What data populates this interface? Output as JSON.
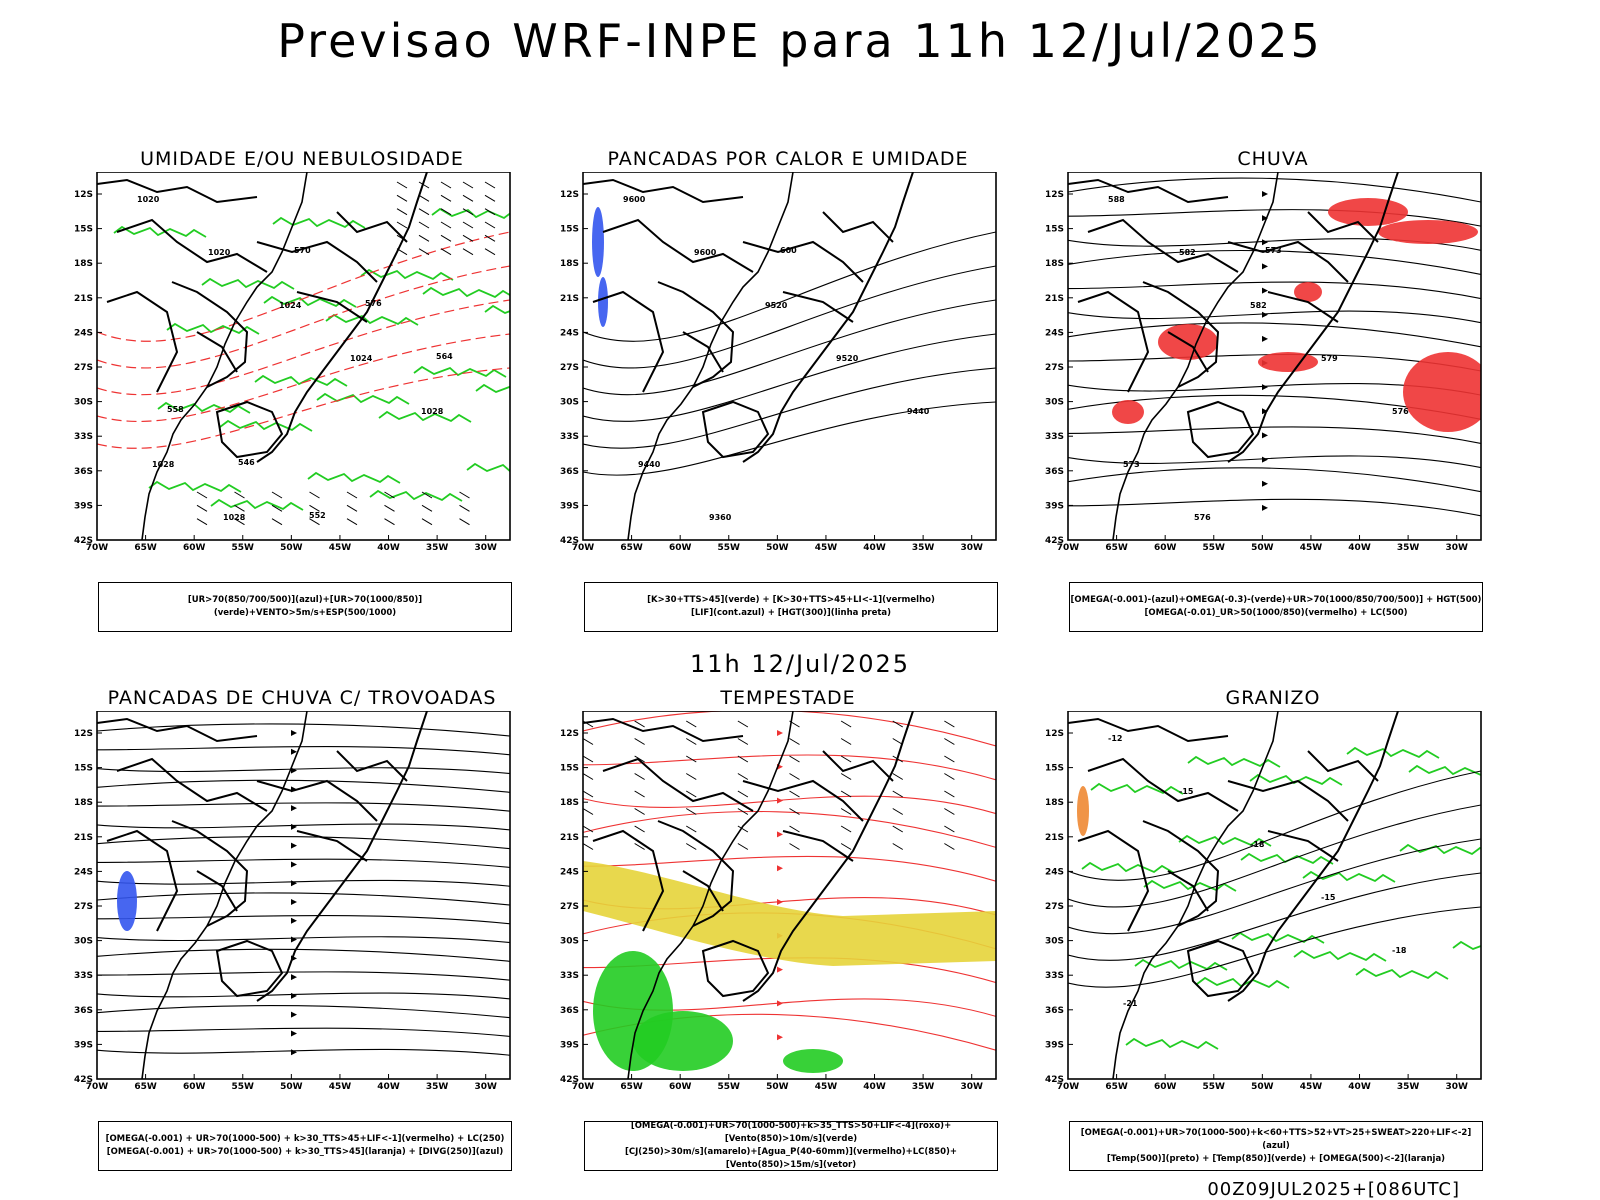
{
  "main_title": "Previsao WRF-INPE  para 11h 12/Jul/2025",
  "mid_title": "11h 12/Jul/2025",
  "footer": "00Z09JUL2025+[086UTC]",
  "axes": {
    "lat_labels": [
      "12S",
      "15S",
      "18S",
      "21S",
      "24S",
      "27S",
      "30S",
      "33S",
      "36S",
      "39S",
      "42S"
    ],
    "lon_labels": [
      "70W",
      "65W",
      "60W",
      "55W",
      "50W",
      "45W",
      "40W",
      "35W",
      "30W"
    ]
  },
  "panels": [
    {
      "title": "UMIDADE E/OU NEBULOSIDADE",
      "legend": [
        "[UR>70(850/700/500)](azul)+[UR>70(1000/850)](verde)+VENTO>5m/s+ESP(500/1000)"
      ],
      "labels": [
        "1020",
        "1020",
        "1024",
        "1024",
        "1028",
        "1028",
        "1028",
        "570",
        "576",
        "564",
        "558",
        "546",
        "552"
      ]
    },
    {
      "title": "PANCADAS POR CALOR E UMIDADE",
      "legend": [
        "[K>30+TTS>45](verde) + [K>30+TTS>45+LI<-1](vermelho)",
        "[LIF](cont.azul) + [HGT(300)](linha preta)"
      ],
      "labels": [
        "9600",
        "9600",
        "9520",
        "9520",
        "9440",
        "9440",
        "9360",
        "600"
      ]
    },
    {
      "title": "CHUVA",
      "legend": [
        "[OMEGA(-0.001)-(azul)+OMEGA(-0.3)-(verde)+UR>70(1000/850/700/500)] + HGT(500)",
        "[OMEGA(-0.01)_UR>50(1000/850)(vermelho) + LC(500)"
      ],
      "labels": [
        "588",
        "582",
        "582",
        "579",
        "576",
        "573",
        "576",
        "573"
      ]
    },
    {
      "title": "PANCADAS DE CHUVA C/ TROVOADAS",
      "legend": [
        "[OMEGA(-0.001) + UR>70(1000-500) + k>30_TTS>45+LIF<-1](vermelho) + LC(250)",
        "[OMEGA(-0.001) + UR>70(1000-500) + k>30_TTS>45](laranja) + [DIVG(250)](azul)"
      ],
      "labels": []
    },
    {
      "title": "TEMPESTADE",
      "legend": [
        "[OMEGA(-0.001)+UR>70(1000-500)+k>35_TTS>50+LIF<-4](roxo)+[Vento(850)>10m/s](verde)",
        "[CJ(250)>30m/s](amarelo)+[Agua_P(40-60mm)](vermelho)+LC(850)+[Vento(850)>15m/s](vetor)"
      ],
      "labels": []
    },
    {
      "title": "GRANIZO",
      "legend": [
        "[OMEGA(-0.001)+UR>70(1000-500)+k<60+TTS>52+VT>25+SWEAT>220+LIF<-2](azul)",
        "[Temp(500)](preto) + [Temp(850)](verde) + [OMEGA(500)<-2](laranja)"
      ],
      "labels": [
        "-12",
        "-15",
        "-18",
        "-15",
        "-18",
        "-21"
      ]
    }
  ],
  "colors": {
    "green": "#22cc22",
    "red": "#ee3333",
    "blue": "#3355ee",
    "yellow": "#e6d43a",
    "orange": "#ee8833",
    "black": "#000000"
  }
}
